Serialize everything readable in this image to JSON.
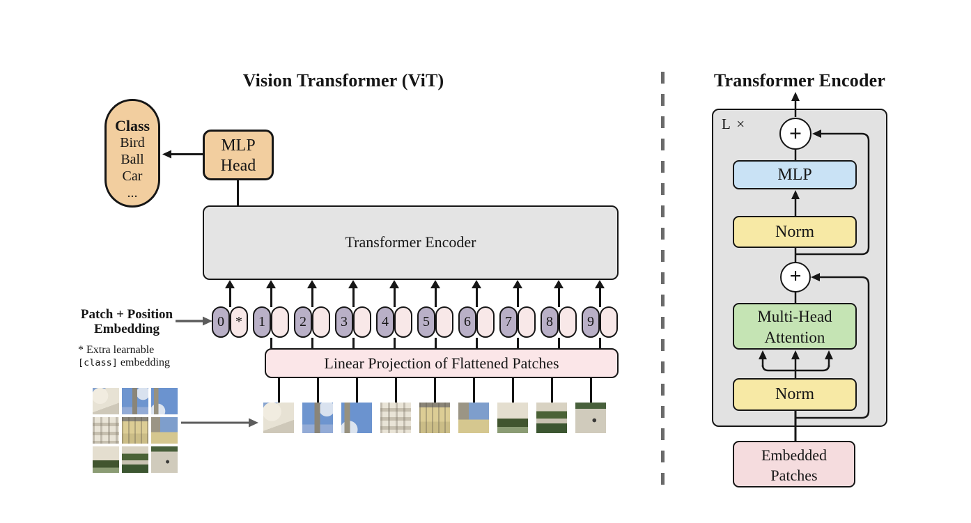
{
  "left_panel": {
    "title": "Vision Transformer (ViT)",
    "class_pill": {
      "heading": "Class",
      "items": [
        "Bird",
        "Ball",
        "Car",
        "..."
      ]
    },
    "mlp_head": {
      "line1": "MLP",
      "line2": "Head"
    },
    "encoder_box_label": "Transformer Encoder",
    "patch_position_label": {
      "line1": "Patch + Position",
      "line2": "Embedding"
    },
    "note": {
      "line1": "* Extra learnable",
      "code": "[class]",
      "suffix": " embedding"
    },
    "linear_projection_label": "Linear Projection of Flattened Patches",
    "tokens": [
      {
        "label": "0",
        "extra": "*",
        "wired": false
      },
      {
        "label": "1",
        "extra": "",
        "wired": true
      },
      {
        "label": "2",
        "extra": "",
        "wired": true
      },
      {
        "label": "3",
        "extra": "",
        "wired": true
      },
      {
        "label": "4",
        "extra": "",
        "wired": true
      },
      {
        "label": "5",
        "extra": "",
        "wired": true
      },
      {
        "label": "6",
        "extra": "",
        "wired": true
      },
      {
        "label": "7",
        "extra": "",
        "wired": true
      },
      {
        "label": "8",
        "extra": "",
        "wired": true
      },
      {
        "label": "9",
        "extra": "",
        "wired": true
      }
    ],
    "patches": [
      "dome",
      "sky-tower",
      "sky-spire",
      "facade-gray",
      "facade-yellow",
      "tower-sky",
      "building-hedge",
      "garden",
      "pavement"
    ],
    "grid_patches": [
      "dome",
      "sky-tower",
      "sky-spire",
      "facade-gray",
      "facade-yellow",
      "tower-sky",
      "building-hedge",
      "garden",
      "pavement"
    ]
  },
  "right_panel": {
    "title": "Transformer Encoder",
    "loop_label": "L ×",
    "plus_glyph": "+",
    "blocks": {
      "mlp": "MLP",
      "norm_top": "Norm",
      "mha_line1": "Multi-Head",
      "mha_line2": "Attention",
      "norm_bottom": "Norm",
      "embedded_line1": "Embedded",
      "embedded_line2": "Patches"
    }
  },
  "colors": {
    "tan": "#F2CE9F",
    "encoder_gray": "#E4E4E4",
    "token_purple": "#B9B0C7",
    "token_pink": "#F8E8E8",
    "projection_pink": "#FBE6E8",
    "mlp_blue": "#C9E2F5",
    "norm_yellow": "#F7E9A5",
    "attention_green": "#C5E4B4",
    "embedded_pink": "#F5DCDE",
    "line_black": "#161616",
    "divider_gray": "#6A6A6A"
  }
}
